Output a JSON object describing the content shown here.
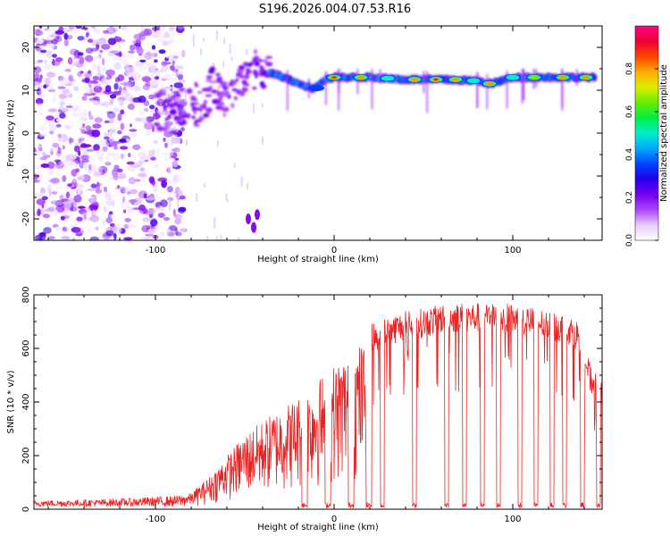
{
  "figure_title": "S196.2026.004.07.53.R16",
  "chart_data": [
    {
      "type": "heatmap",
      "name": "spectrogram",
      "xlabel": "Height of straight line (km)",
      "ylabel": "Frequency (Hz)",
      "xlim": [
        -168,
        150
      ],
      "ylim": [
        -25,
        25
      ],
      "xticks": [
        -100,
        0,
        100
      ],
      "xtick_labels": [
        "-100",
        "0",
        "100"
      ],
      "yticks": [
        -20,
        -10,
        0,
        10,
        20
      ],
      "ytick_labels": [
        "-20",
        "-10",
        "0",
        "10",
        "20"
      ],
      "colorbar": {
        "label": "Normalized spectral amplitude",
        "range": [
          0,
          1
        ],
        "ticks": [
          0.0,
          0.2,
          0.4,
          0.6,
          0.8
        ],
        "tick_labels": [
          "0.0",
          "0.2",
          "0.4",
          "0.6",
          "0.8"
        ],
        "stops": [
          "#ffffff",
          "#e6ccff",
          "#aa44ff",
          "#7700ee",
          "#2200ee",
          "#0044ff",
          "#00aaff",
          "#00eecc",
          "#00ee44",
          "#66ee00",
          "#ddee00",
          "#ffaa00",
          "#ff4400",
          "#ee0033",
          "#ff0088"
        ]
      },
      "signal_track": {
        "description": "dominant frequency vs height",
        "points": [
          [
            -88,
            8
          ],
          [
            -80,
            9.5
          ],
          [
            -70,
            10.5
          ],
          [
            -62,
            9
          ],
          [
            -55,
            11
          ],
          [
            -48,
            13
          ],
          [
            -42,
            15
          ],
          [
            -35,
            14
          ],
          [
            -28,
            13
          ],
          [
            -20,
            11.5
          ],
          [
            -12,
            10.5
          ],
          [
            -5,
            12.5
          ],
          [
            0,
            13
          ],
          [
            20,
            13
          ],
          [
            40,
            12.5
          ],
          [
            60,
            12.5
          ],
          [
            80,
            12.2
          ],
          [
            88,
            11.5
          ],
          [
            100,
            13
          ],
          [
            120,
            13
          ],
          [
            145,
            13
          ]
        ],
        "blobs": [
          [
            0,
            13,
            0.9
          ],
          [
            15,
            13,
            0.85
          ],
          [
            30,
            12.8,
            0.55
          ],
          [
            45,
            12.5,
            0.8
          ],
          [
            57,
            12.5,
            0.95
          ],
          [
            68,
            12.5,
            0.8
          ],
          [
            78,
            12.2,
            0.5
          ],
          [
            87,
            11.5,
            0.85
          ],
          [
            100,
            13,
            0.55
          ],
          [
            112,
            13,
            0.7
          ],
          [
            128,
            13,
            0.85
          ],
          [
            141,
            13,
            0.8
          ],
          [
            -18,
            11,
            0.3
          ],
          [
            -10,
            10.5,
            0.35
          ]
        ],
        "low_branch": [
          [
            -48,
            -20
          ],
          [
            -45,
            -22
          ],
          [
            -43,
            -19
          ]
        ]
      }
    },
    {
      "type": "line",
      "name": "snr",
      "xlabel": "Height of straight line (km)",
      "ylabel": "SNR (10 * v/v)",
      "xlim": [
        -168,
        150
      ],
      "ylim": [
        0,
        800
      ],
      "xticks": [
        -100,
        0,
        100
      ],
      "xtick_labels": [
        "-100",
        "0",
        "100"
      ],
      "yticks": [
        0,
        200,
        400,
        600,
        800
      ],
      "ytick_labels": [
        "0",
        "200",
        "400",
        "600",
        "800"
      ],
      "color": "#ee2222",
      "envelope": [
        [
          -168,
          25
        ],
        [
          -130,
          30
        ],
        [
          -100,
          40
        ],
        [
          -88,
          45
        ],
        [
          -80,
          60
        ],
        [
          -70,
          120
        ],
        [
          -60,
          200
        ],
        [
          -50,
          280
        ],
        [
          -40,
          330
        ],
        [
          -30,
          380
        ],
        [
          -20,
          420
        ],
        [
          -10,
          480
        ],
        [
          0,
          540
        ],
        [
          10,
          600
        ],
        [
          20,
          640
        ],
        [
          30,
          670
        ],
        [
          40,
          690
        ],
        [
          50,
          700
        ],
        [
          60,
          715
        ],
        [
          70,
          720
        ],
        [
          80,
          720
        ],
        [
          90,
          720
        ],
        [
          100,
          715
        ],
        [
          110,
          705
        ],
        [
          120,
          690
        ],
        [
          130,
          680
        ],
        [
          137,
          650
        ],
        [
          143,
          500
        ],
        [
          150,
          420
        ]
      ],
      "dropouts": [
        [
          -18,
          -15
        ],
        [
          -5,
          -2
        ],
        [
          8,
          11
        ],
        [
          18,
          21
        ],
        [
          26,
          28
        ],
        [
          44,
          46
        ],
        [
          62,
          64
        ],
        [
          72,
          74
        ],
        [
          82,
          84
        ],
        [
          91,
          93
        ],
        [
          103,
          105
        ],
        [
          112,
          114
        ],
        [
          121,
          123
        ],
        [
          128,
          130
        ],
        [
          138,
          140
        ],
        [
          147,
          149
        ]
      ]
    }
  ]
}
